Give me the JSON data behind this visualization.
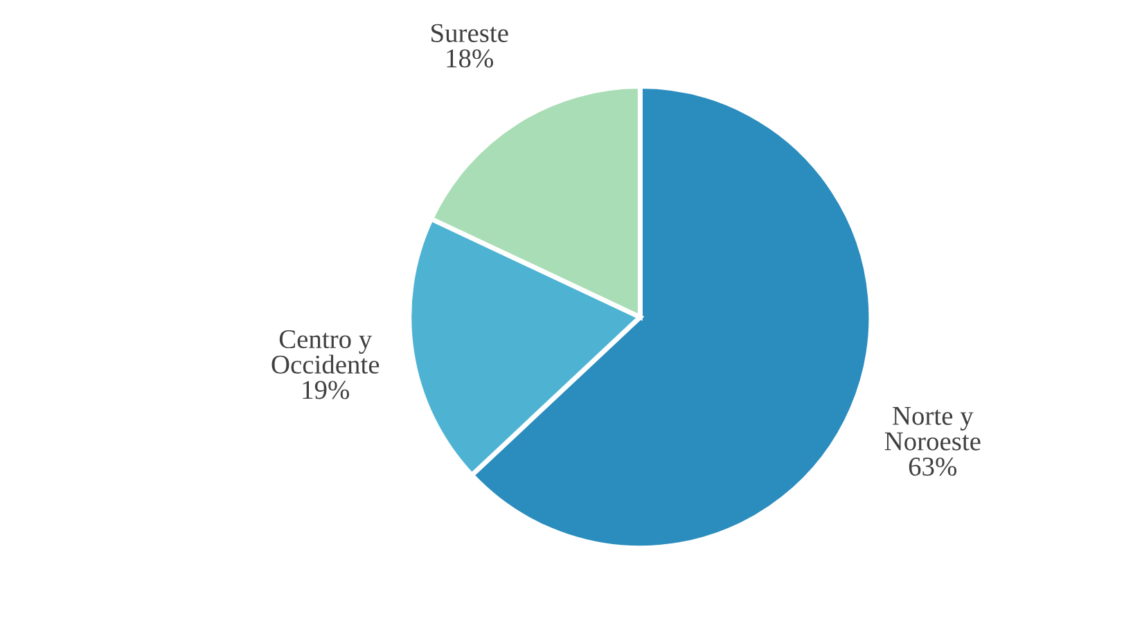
{
  "chart_data": {
    "type": "pie",
    "categories": [
      "Norte y Noroeste",
      "Centro y Occidente",
      "Sureste"
    ],
    "values": [
      63,
      19,
      18
    ],
    "value_labels": [
      "63%",
      "19%",
      "18%"
    ],
    "colors": [
      "#2b8cbe",
      "#4eb3d3",
      "#a8ddb5"
    ],
    "legend": false
  }
}
